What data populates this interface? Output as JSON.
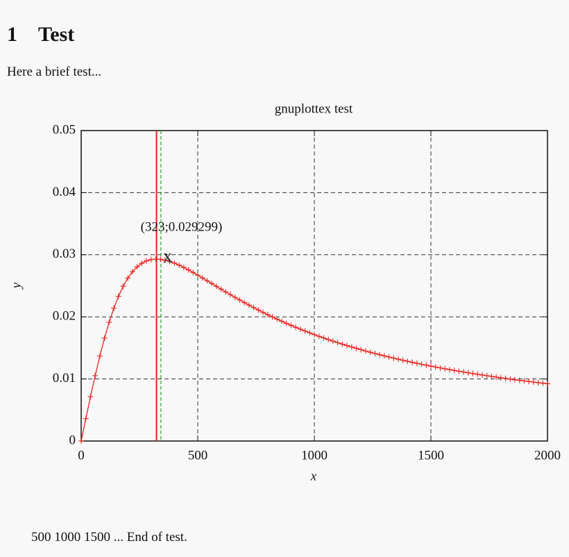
{
  "header": {
    "number": "1",
    "title": "Test"
  },
  "intro": "Here a brief test...",
  "chart_data": {
    "type": "line",
    "title": "gnuplottex test",
    "x_label": "x",
    "y_label": "y",
    "x": [
      0,
      20,
      40,
      60,
      80,
      100,
      120,
      140,
      160,
      180,
      200,
      220,
      240,
      260,
      280,
      300,
      320,
      340,
      360,
      380,
      400,
      420,
      440,
      460,
      480,
      500,
      520,
      540,
      560,
      580,
      600,
      620,
      640,
      660,
      680,
      700,
      720,
      740,
      760,
      780,
      800,
      820,
      840,
      860,
      880,
      900,
      920,
      940,
      960,
      980,
      1000,
      1020,
      1040,
      1060,
      1080,
      1100,
      1120,
      1140,
      1160,
      1180,
      1200,
      1220,
      1240,
      1260,
      1280,
      1300,
      1320,
      1340,
      1360,
      1380,
      1400,
      1420,
      1440,
      1460,
      1480,
      1500,
      1520,
      1540,
      1560,
      1580,
      1600,
      1620,
      1640,
      1660,
      1680,
      1700,
      1720,
      1740,
      1760,
      1780,
      1800,
      1820,
      1840,
      1860,
      1880,
      1900,
      1920,
      1940,
      1960,
      1980,
      2000
    ],
    "series": [
      {
        "color": "#e8201c",
        "values": [
          0,
          0.003615,
          0.007148,
          0.010524,
          0.013677,
          0.016557,
          0.019133,
          0.021385,
          0.023311,
          0.024921,
          0.026232,
          0.027268,
          0.028057,
          0.028627,
          0.029007,
          0.029224,
          0.029302,
          0.029265,
          0.029132,
          0.028921,
          0.028646,
          0.028322,
          0.027957,
          0.027563,
          0.027146,
          0.026712,
          0.026269,
          0.025818,
          0.025365,
          0.024912,
          0.024461,
          0.024015,
          0.023574,
          0.02314,
          0.022714,
          0.022296,
          0.021887,
          0.021487,
          0.021097,
          0.020717,
          0.020346,
          0.019984,
          0.019633,
          0.019291,
          0.018957,
          0.018633,
          0.018318,
          0.018012,
          0.017714,
          0.017424,
          0.017142,
          0.016867,
          0.016601,
          0.016341,
          0.016089,
          0.015843,
          0.015604,
          0.015371,
          0.015145,
          0.014924,
          0.014709,
          0.0145,
          0.014296,
          0.014097,
          0.013904,
          0.013715,
          0.013531,
          0.013351,
          0.013176,
          0.013005,
          0.012838,
          0.012675,
          0.012516,
          0.012361,
          0.012209,
          0.012061,
          0.011916,
          0.011774,
          0.011636,
          0.0115,
          0.011368,
          0.011238,
          0.011112,
          0.010988,
          0.010866,
          0.010747,
          0.010631,
          0.010517,
          0.010405,
          0.010296,
          0.010189,
          0.010083,
          0.00998,
          0.00988,
          0.009781,
          0.009683,
          0.009588,
          0.009494,
          0.009403,
          0.009313,
          0.009224
        ]
      }
    ],
    "xlim": [
      0,
      2000
    ],
    "ylim": [
      0,
      0.05
    ],
    "xticks": [
      0,
      500,
      1000,
      1500,
      2000
    ],
    "yticks": [
      0,
      0.01,
      0.02,
      0.03,
      0.04,
      0.05
    ],
    "grid": true,
    "vlines": [
      {
        "x": 323,
        "color": "#e8201c"
      },
      {
        "x": 342,
        "color": "#2e9e2e",
        "dashed": true
      }
    ],
    "marker": {
      "label": "X",
      "x": 323,
      "y": 0.029299
    },
    "annotation": "(323;0.029299)"
  },
  "footer": "500 1000 1500 ... End of test."
}
